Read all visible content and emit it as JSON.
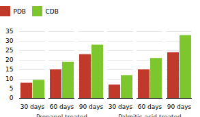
{
  "chart_data": {
    "type": "bar",
    "categories": [
      "30 days",
      "60 days",
      "90 days",
      "30 days",
      "60 days",
      "90 days"
    ],
    "groups": [
      "Propanol treated",
      "Palmitic acid treated"
    ],
    "series": [
      {
        "name": "PDB",
        "color": "#c0392b",
        "values": [
          8,
          15,
          23,
          7,
          15,
          24
        ]
      },
      {
        "name": "CDB",
        "color": "#7dc62e",
        "values": [
          9.5,
          19,
          28,
          12,
          21,
          33
        ]
      }
    ],
    "ylim": [
      0,
      35
    ],
    "yticks": [
      0,
      5,
      10,
      15,
      20,
      25,
      30,
      35
    ],
    "grid": true,
    "legend": "top"
  }
}
